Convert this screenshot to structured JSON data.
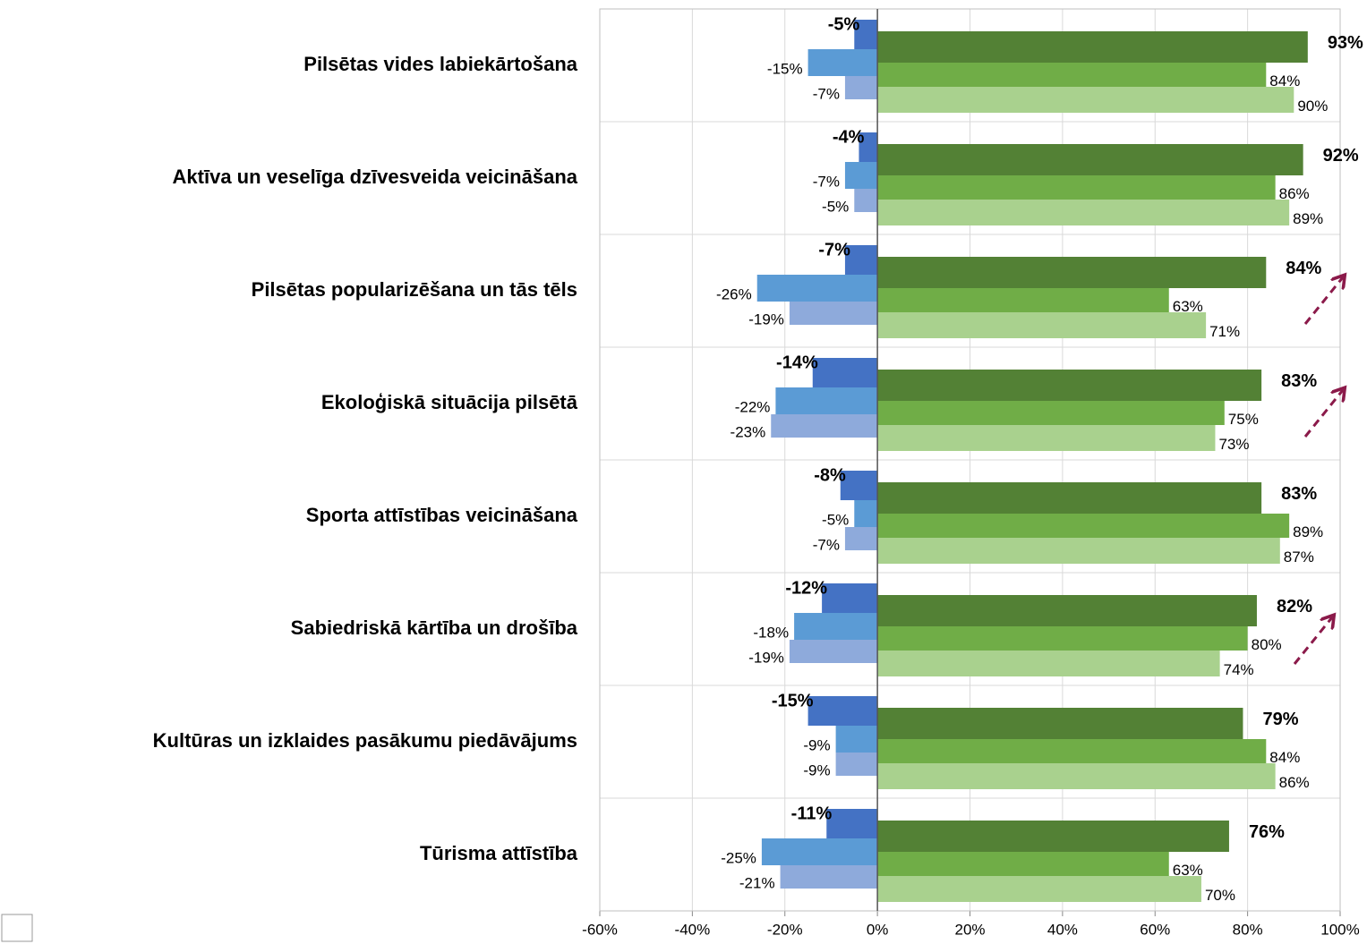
{
  "chart_data": {
    "type": "bar",
    "orientation": "horizontal",
    "categories": [
      "Pilsētas vides labiekārtošana",
      "Aktīva un veselīga dzīvesveida veicināšana",
      "Pilsētas popularizēšana un tās tēls",
      "Ekoloģiskā situācija pilsētā",
      "Sporta attīstības veicināšana",
      "Sabiedriskā kārtība un drošība",
      "Kultūras un izklaides pasākumu piedāvājums",
      "Tūrisma attīstība"
    ],
    "series": [
      {
        "color": "#4472c4",
        "values": [
          -5,
          -4,
          -7,
          -14,
          -8,
          -12,
          -15,
          -11
        ],
        "value_labels": [
          "-5%",
          "-4%",
          "-7%",
          "-14%",
          "-8%",
          "-12%",
          "-15%",
          "-11%"
        ]
      },
      {
        "color": "#5b9bd5",
        "values": [
          -15,
          -7,
          -26,
          -22,
          -5,
          -18,
          -9,
          -25
        ],
        "value_labels": [
          "-15%",
          "-7%",
          "-26%",
          "-22%",
          "-5%",
          "-18%",
          "-9%",
          "-25%"
        ]
      },
      {
        "color": "#8eaadb",
        "values": [
          -7,
          -5,
          -19,
          -23,
          -7,
          -19,
          -9,
          -21
        ],
        "value_labels": [
          "-7%",
          "-5%",
          "-19%",
          "-23%",
          "-7%",
          "-19%",
          "-9%",
          "-21%"
        ]
      },
      {
        "color": "#538135",
        "values": [
          93,
          92,
          84,
          83,
          83,
          82,
          79,
          76
        ],
        "value_labels": [
          "93%",
          "92%",
          "84%",
          "83%",
          "83%",
          "82%",
          "79%",
          "76%"
        ]
      },
      {
        "color": "#70ad47",
        "values": [
          84,
          86,
          63,
          75,
          89,
          80,
          84,
          63
        ],
        "value_labels": [
          "84%",
          "86%",
          "63%",
          "75%",
          "89%",
          "80%",
          "84%",
          "63%"
        ]
      },
      {
        "color": "#a9d18e",
        "values": [
          90,
          89,
          71,
          73,
          87,
          74,
          86,
          70
        ],
        "value_labels": [
          "90%",
          "89%",
          "71%",
          "73%",
          "87%",
          "74%",
          "86%",
          "70%"
        ]
      }
    ],
    "xlim": [
      -60,
      100
    ],
    "xticks": [
      {
        "value": -60,
        "label": "-60%"
      },
      {
        "value": -40,
        "label": "-40%"
      },
      {
        "value": -20,
        "label": "-20%"
      },
      {
        "value": 0,
        "label": "0%"
      },
      {
        "value": 20,
        "label": "20%"
      },
      {
        "value": 40,
        "label": "40%"
      },
      {
        "value": 60,
        "label": "60%"
      },
      {
        "value": 80,
        "label": "80%"
      },
      {
        "value": 100,
        "label": "100%"
      }
    ],
    "grid": true
  }
}
